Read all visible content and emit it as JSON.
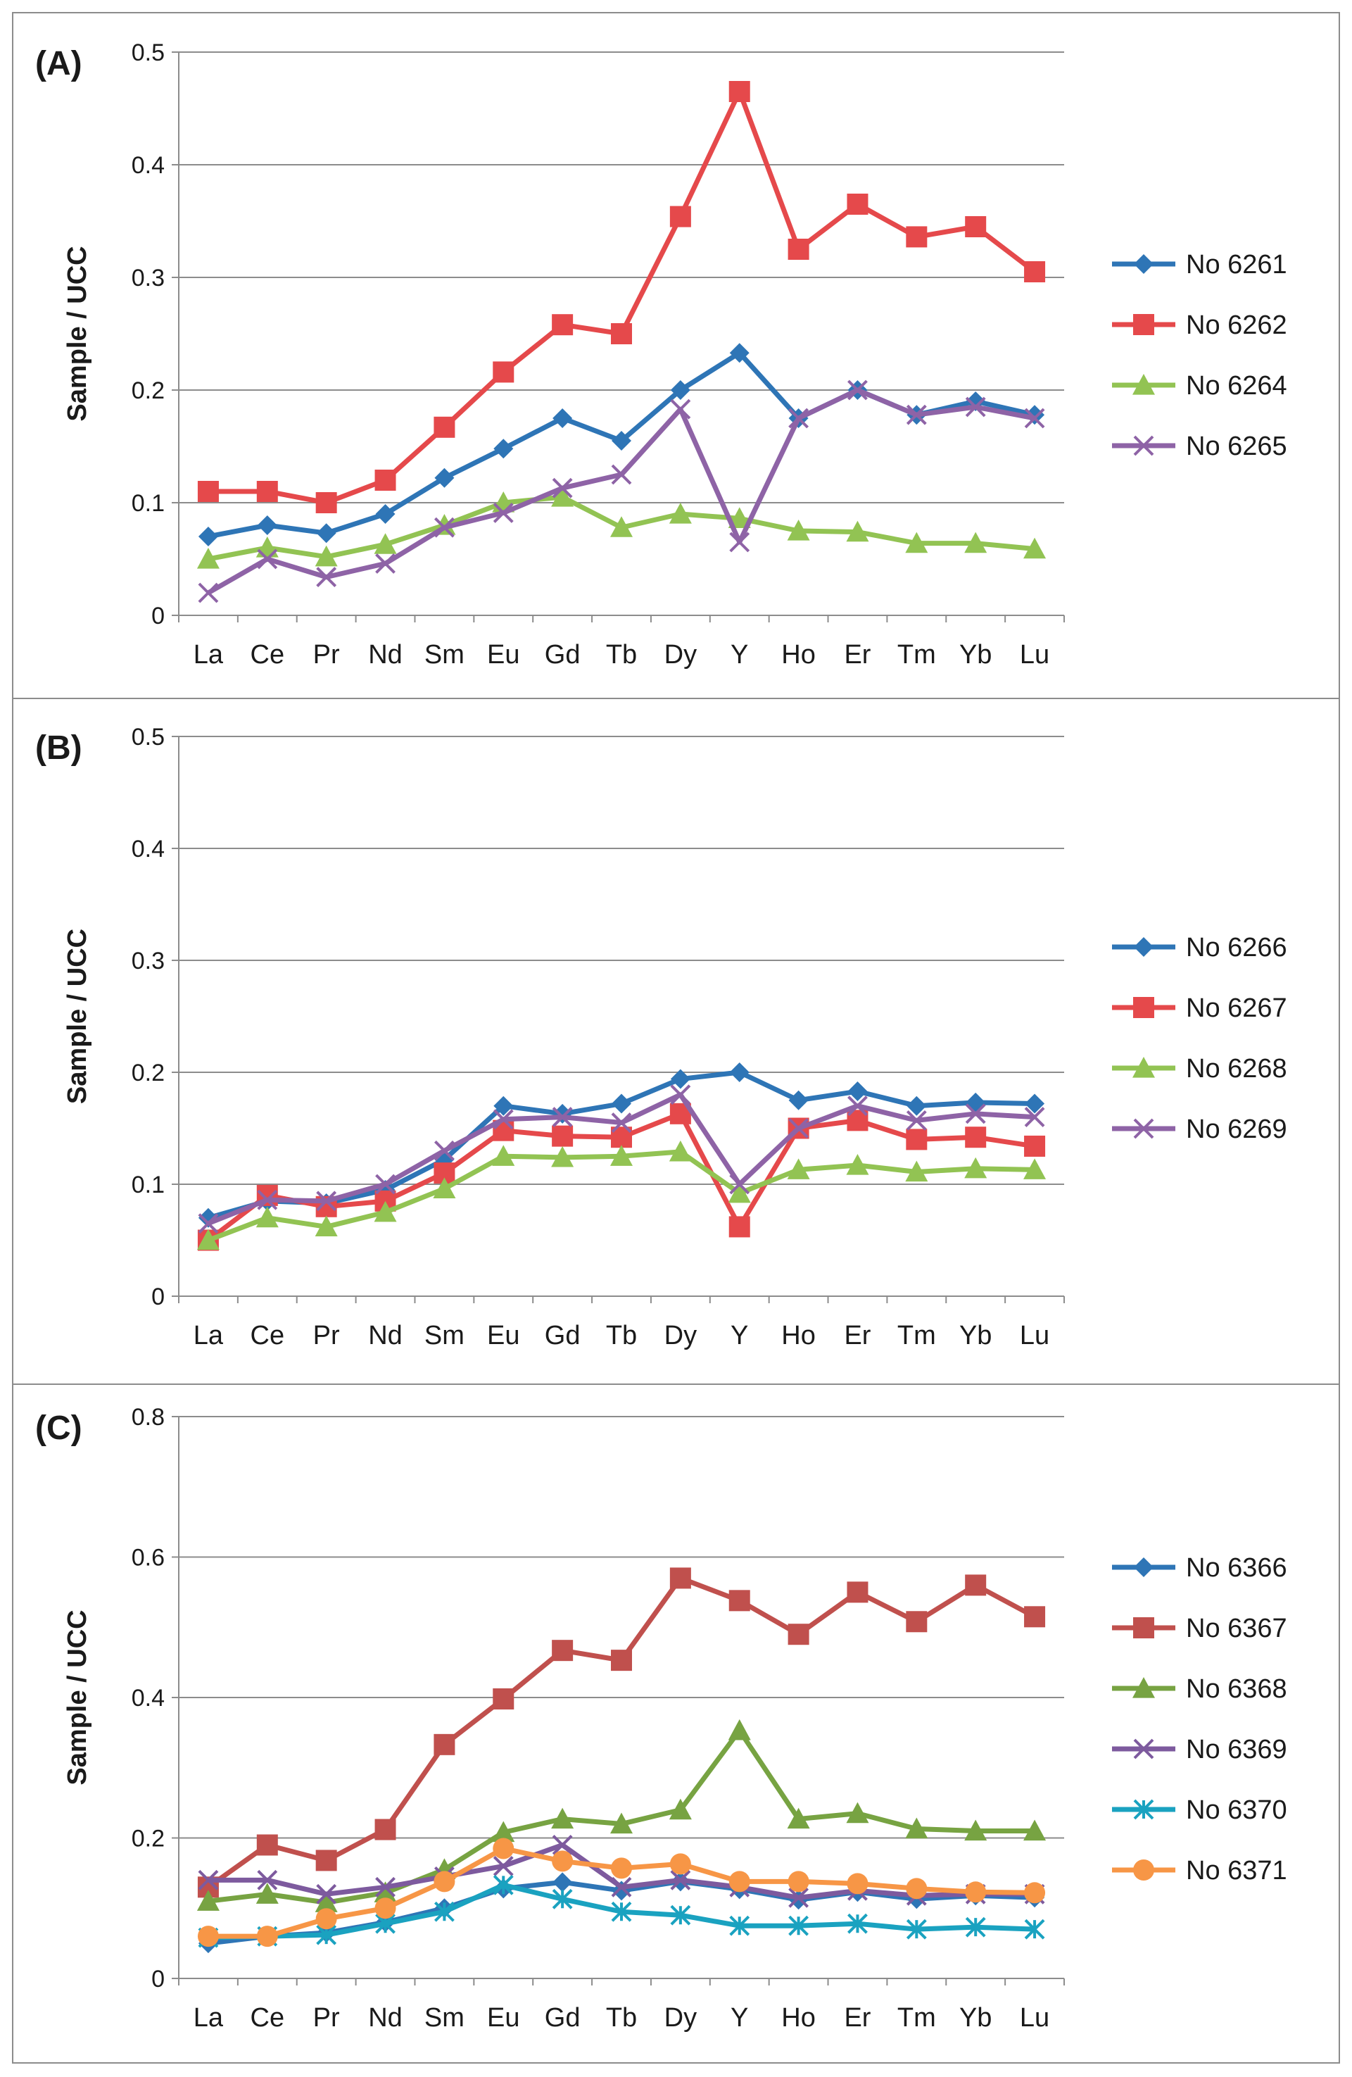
{
  "chart_data": [
    {
      "type": "line",
      "panel_label": "(A)",
      "ylabel": "Sample / UCC",
      "ylim": [
        0,
        0.5
      ],
      "yticks": [
        "0",
        "0.1",
        "0.2",
        "0.3",
        "0.4",
        "0.5"
      ],
      "ytick_values": [
        0,
        0.1,
        0.2,
        0.3,
        0.4,
        0.5
      ],
      "categories": [
        "La",
        "Ce",
        "Pr",
        "Nd",
        "Sm",
        "Eu",
        "Gd",
        "Tb",
        "Dy",
        "Y",
        "Ho",
        "Er",
        "Tm",
        "Yb",
        "Lu"
      ],
      "grid": true,
      "legend": "right",
      "series": [
        {
          "name": "No 6261",
          "color": "#2E75B6",
          "marker": "diamond",
          "values": [
            0.07,
            0.08,
            0.073,
            0.09,
            0.122,
            0.148,
            0.175,
            0.155,
            0.2,
            0.233,
            0.175,
            0.2,
            0.178,
            0.19,
            0.178
          ]
        },
        {
          "name": "No 6262",
          "color": "#E5494B",
          "marker": "square",
          "values": [
            0.11,
            0.11,
            0.1,
            0.12,
            0.167,
            0.216,
            0.258,
            0.25,
            0.354,
            0.465,
            0.325,
            0.365,
            0.336,
            0.345,
            0.305
          ]
        },
        {
          "name": "No 6264",
          "color": "#92C353",
          "marker": "triangle",
          "values": [
            0.05,
            0.06,
            0.052,
            0.063,
            0.08,
            0.1,
            0.105,
            0.078,
            0.09,
            0.086,
            0.075,
            0.074,
            0.064,
            0.064,
            0.059
          ]
        },
        {
          "name": "No 6265",
          "color": "#8E63A6",
          "marker": "x",
          "values": [
            0.02,
            0.05,
            0.034,
            0.046,
            0.078,
            0.091,
            0.113,
            0.125,
            0.183,
            0.065,
            0.175,
            0.2,
            0.178,
            0.185,
            0.175
          ]
        }
      ]
    },
    {
      "type": "line",
      "panel_label": "(B)",
      "ylabel": "Sample / UCC",
      "ylim": [
        0,
        0.5
      ],
      "yticks": [
        "0",
        "0.1",
        "0.2",
        "0.3",
        "0.4",
        "0.5"
      ],
      "ytick_values": [
        0,
        0.1,
        0.2,
        0.3,
        0.4,
        0.5
      ],
      "categories": [
        "La",
        "Ce",
        "Pr",
        "Nd",
        "Sm",
        "Eu",
        "Gd",
        "Tb",
        "Dy",
        "Y",
        "Ho",
        "Er",
        "Tm",
        "Yb",
        "Lu"
      ],
      "grid": true,
      "legend": "right",
      "series": [
        {
          "name": "No 6266",
          "color": "#2E75B6",
          "marker": "diamond",
          "values": [
            0.07,
            0.085,
            0.083,
            0.095,
            0.122,
            0.17,
            0.163,
            0.172,
            0.194,
            0.2,
            0.175,
            0.183,
            0.17,
            0.173,
            0.172
          ]
        },
        {
          "name": "No 6267",
          "color": "#E5494B",
          "marker": "square",
          "values": [
            0.05,
            0.09,
            0.08,
            0.085,
            0.11,
            0.148,
            0.143,
            0.142,
            0.163,
            0.062,
            0.15,
            0.157,
            0.14,
            0.142,
            0.134
          ]
        },
        {
          "name": "No 6268",
          "color": "#92C353",
          "marker": "triangle",
          "values": [
            0.05,
            0.07,
            0.062,
            0.075,
            0.096,
            0.125,
            0.124,
            0.125,
            0.129,
            0.092,
            0.113,
            0.117,
            0.111,
            0.114,
            0.113
          ]
        },
        {
          "name": "No 6269",
          "color": "#8E63A6",
          "marker": "x",
          "values": [
            0.065,
            0.086,
            0.085,
            0.1,
            0.13,
            0.158,
            0.16,
            0.155,
            0.18,
            0.1,
            0.15,
            0.17,
            0.157,
            0.163,
            0.16
          ]
        }
      ]
    },
    {
      "type": "line",
      "panel_label": "(C)",
      "ylabel": "Sample / UCC",
      "ylim": [
        0,
        0.8
      ],
      "yticks": [
        "0",
        "0.2",
        "0.4",
        "0.6",
        "0.8"
      ],
      "ytick_values": [
        0,
        0.2,
        0.4,
        0.6,
        0.8
      ],
      "categories": [
        "La",
        "Ce",
        "Pr",
        "Nd",
        "Sm",
        "Eu",
        "Gd",
        "Tb",
        "Dy",
        "Y",
        "Ho",
        "Er",
        "Tm",
        "Yb",
        "Lu"
      ],
      "grid": true,
      "legend": "right",
      "series": [
        {
          "name": "No 6366",
          "color": "#2E75B6",
          "marker": "diamond",
          "values": [
            0.05,
            0.06,
            0.065,
            0.08,
            0.1,
            0.128,
            0.137,
            0.125,
            0.138,
            0.127,
            0.112,
            0.123,
            0.113,
            0.118,
            0.115
          ]
        },
        {
          "name": "No 6367",
          "color": "#C0504D",
          "marker": "square",
          "values": [
            0.13,
            0.19,
            0.168,
            0.212,
            0.333,
            0.398,
            0.467,
            0.453,
            0.57,
            0.538,
            0.49,
            0.55,
            0.508,
            0.56,
            0.515
          ]
        },
        {
          "name": "No 6368",
          "color": "#77A342",
          "marker": "triangle",
          "values": [
            0.11,
            0.12,
            0.108,
            0.122,
            0.155,
            0.208,
            0.227,
            0.22,
            0.24,
            0.353,
            0.227,
            0.235,
            0.213,
            0.21,
            0.21
          ]
        },
        {
          "name": "No 6369",
          "color": "#7D5A9E",
          "marker": "x",
          "values": [
            0.14,
            0.14,
            0.12,
            0.13,
            0.145,
            0.16,
            0.19,
            0.13,
            0.14,
            0.13,
            0.115,
            0.125,
            0.118,
            0.12,
            0.12
          ]
        },
        {
          "name": "No 6370",
          "color": "#1AA2C0",
          "marker": "star",
          "values": [
            0.058,
            0.06,
            0.062,
            0.078,
            0.095,
            0.133,
            0.113,
            0.095,
            0.09,
            0.075,
            0.075,
            0.078,
            0.07,
            0.073,
            0.07
          ]
        },
        {
          "name": "No 6371",
          "color": "#F79646",
          "marker": "circle",
          "values": [
            0.06,
            0.06,
            0.085,
            0.1,
            0.138,
            0.185,
            0.167,
            0.157,
            0.163,
            0.138,
            0.138,
            0.135,
            0.128,
            0.123,
            0.122
          ]
        }
      ]
    }
  ]
}
